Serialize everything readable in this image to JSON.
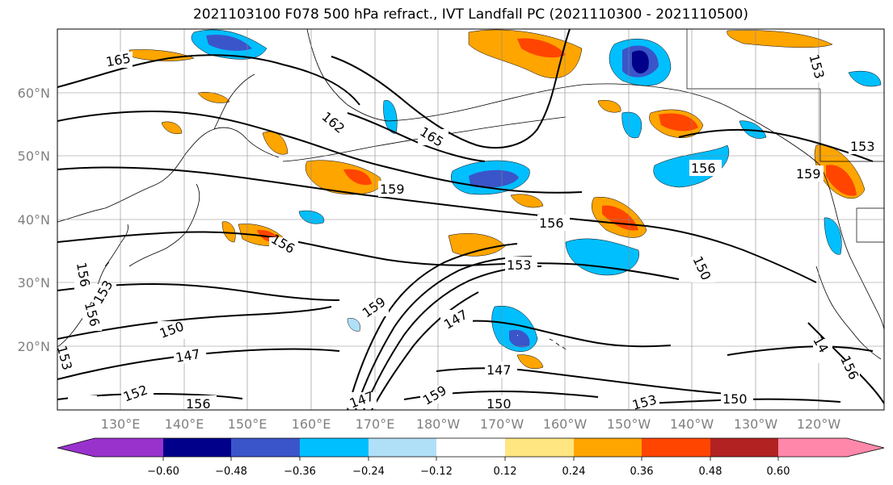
{
  "title": "2021103100 F078 500 hPa refract., IVT Landfall PC (2021110300 - 2021110500)",
  "map": {
    "lat_labels": [
      "60°N",
      "50°N",
      "40°N",
      "30°N",
      "20°N"
    ],
    "lon_labels": [
      "130°E",
      "140°E",
      "150°E",
      "160°E",
      "170°E",
      "180°W",
      "170°W",
      "160°W",
      "150°W",
      "140°W",
      "130°W",
      "120°W"
    ],
    "contour_labels": [
      "165",
      "162",
      "165",
      "159",
      "156",
      "156",
      "153",
      "150",
      "147",
      "147",
      "150",
      "156",
      "153",
      "159",
      "153",
      "147",
      "159",
      "150",
      "153",
      "150",
      "156",
      "159",
      "156",
      "153",
      "147",
      "156",
      "153",
      "150",
      "147",
      "147",
      "152",
      "156",
      "14",
      "156"
    ]
  },
  "colorbar": {
    "tick_labels": [
      "−0.60",
      "−0.48",
      "−0.36",
      "−0.24",
      "−0.12",
      "0.12",
      "0.24",
      "0.36",
      "0.48",
      "0.60"
    ],
    "colors": [
      "#9932cc",
      "#00008b",
      "#3a55c9",
      "#00bfff",
      "#b0e0f8",
      "#ffffff",
      "#ffe680",
      "#ffa500",
      "#ff4500",
      "#b22222",
      "#ff88aa"
    ]
  }
}
